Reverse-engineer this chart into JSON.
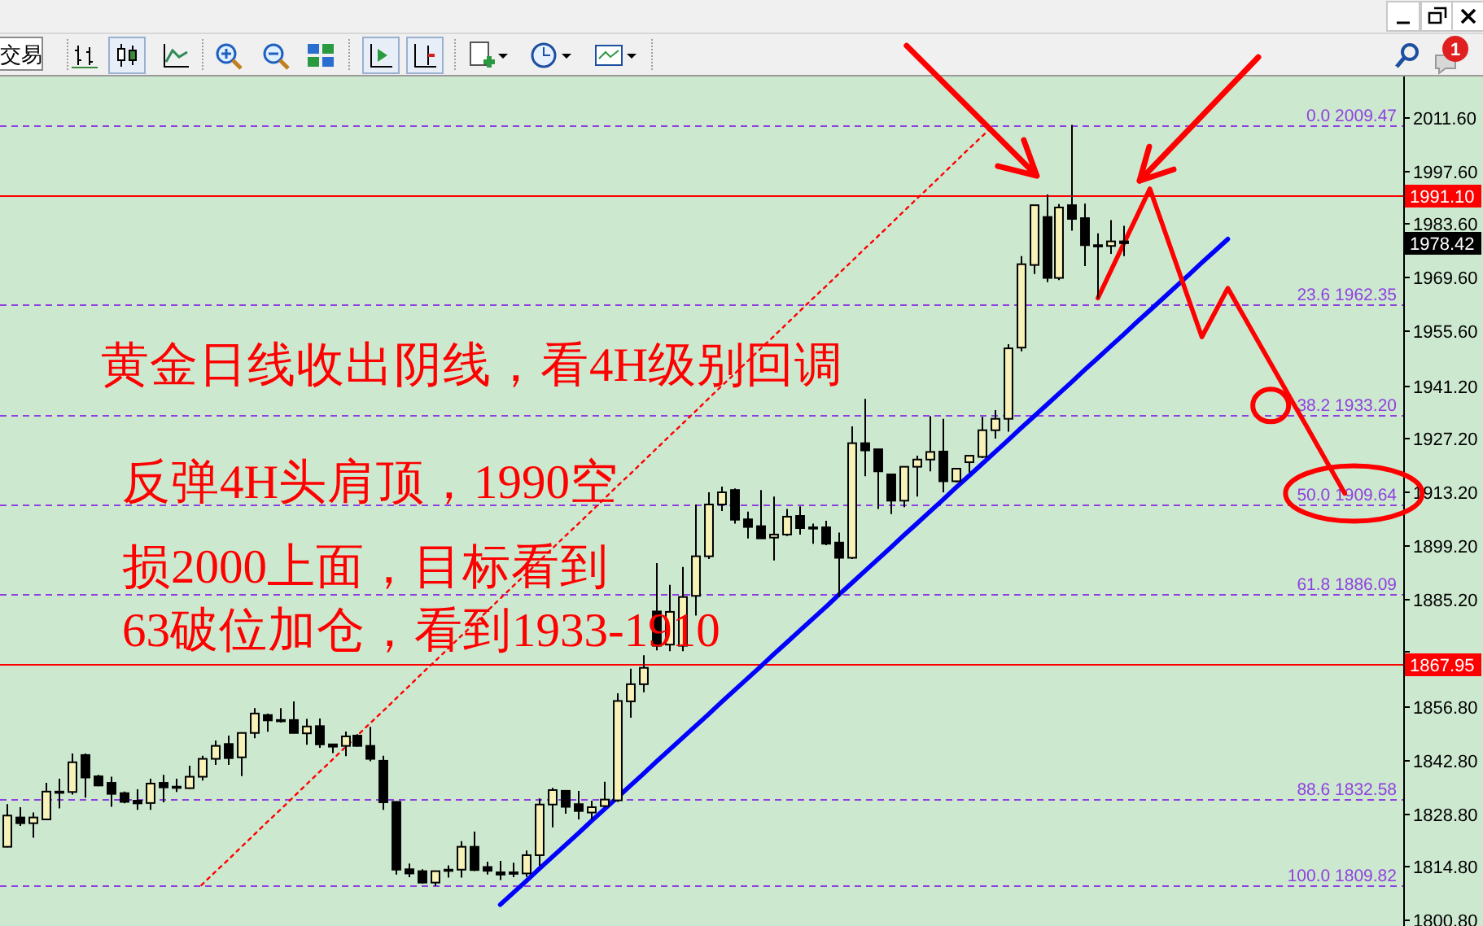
{
  "chart_data": {
    "type": "candlestick",
    "categories": [
      null,
      null,
      null,
      null,
      null,
      null,
      null,
      null,
      null,
      null,
      null,
      null,
      null,
      null,
      null,
      null,
      null,
      null,
      null,
      null,
      null,
      null,
      null,
      null,
      null,
      null,
      null,
      null,
      null,
      null,
      null,
      null,
      null,
      null,
      null,
      null,
      null,
      null,
      null,
      null,
      null,
      null,
      null,
      null,
      null,
      null,
      null,
      null,
      null,
      null,
      null,
      null,
      null,
      null,
      null,
      null,
      null,
      null,
      null,
      null,
      null,
      null,
      null,
      null,
      null,
      null,
      null,
      null,
      null,
      null,
      null,
      null,
      null,
      null,
      null,
      null,
      null,
      null,
      null,
      null,
      null,
      null,
      null,
      null,
      null,
      null,
      null,
      null,
      null,
      null,
      null,
      null,
      null,
      null,
      null,
      null,
      null,
      null,
      null,
      null,
      null,
      null,
      null,
      null,
      null,
      null,
      null,
      null
    ],
    "ohlc": [
      [
        1819.9,
        1831.1,
        1819.8,
        1828.1
      ],
      [
        1827.6,
        1830.3,
        1825.4,
        1826.1
      ],
      [
        1826.1,
        1828.9,
        1822.3,
        1827.6
      ],
      [
        1827.1,
        1836.7,
        1827.0,
        1834.4
      ],
      [
        1834.4,
        1837.8,
        1830.0,
        1834.4
      ],
      [
        1834.3,
        1844.4,
        1833.6,
        1842.1
      ],
      [
        1844.0,
        1844.4,
        1832.8,
        1838.1
      ],
      [
        1838.4,
        1838.8,
        1835.8,
        1836.0
      ],
      [
        1836.7,
        1838.3,
        1830.4,
        1833.8
      ],
      [
        1834.0,
        1834.4,
        1831.3,
        1831.7
      ],
      [
        1832.0,
        1835.0,
        1829.6,
        1831.3
      ],
      [
        1831.4,
        1837.8,
        1829.6,
        1836.5
      ],
      [
        1836.7,
        1838.8,
        1831.6,
        1835.5
      ],
      [
        1835.7,
        1837.8,
        1834.3,
        1835.7
      ],
      [
        1835.3,
        1841.2,
        1835.1,
        1838.3
      ],
      [
        1838.3,
        1843.8,
        1837.3,
        1843.0
      ],
      [
        1843.0,
        1847.8,
        1841.4,
        1846.4
      ],
      [
        1846.9,
        1849.1,
        1841.4,
        1843.2
      ],
      [
        1843.4,
        1849.9,
        1838.5,
        1849.8
      ],
      [
        1849.8,
        1856.3,
        1848.4,
        1854.9
      ],
      [
        1854.5,
        1854.9,
        1850.1,
        1853.1
      ],
      [
        1853.2,
        1856.3,
        1852.5,
        1853.2
      ],
      [
        1853.2,
        1858.1,
        1849.7,
        1849.8
      ],
      [
        1849.7,
        1853.5,
        1846.7,
        1851.5
      ],
      [
        1851.6,
        1853.6,
        1845.9,
        1846.8
      ],
      [
        1846.8,
        1846.8,
        1844.5,
        1846.2
      ],
      [
        1846.4,
        1850.2,
        1843.7,
        1848.9
      ],
      [
        1849.1,
        1849.5,
        1846.2,
        1846.4
      ],
      [
        1846.4,
        1851.4,
        1842.4,
        1843.0
      ],
      [
        1842.5,
        1843.8,
        1829.6,
        1831.6
      ],
      [
        1831.7,
        1831.7,
        1812.6,
        1813.9
      ],
      [
        1814.0,
        1815.5,
        1811.9,
        1812.9
      ],
      [
        1813.5,
        1814.0,
        1810.2,
        1810.5
      ],
      [
        1810.5,
        1813.5,
        1809.6,
        1813.5
      ],
      [
        1813.9,
        1815.0,
        1811.8,
        1813.9
      ],
      [
        1813.9,
        1821.4,
        1811.8,
        1819.9
      ],
      [
        1819.9,
        1823.9,
        1813.5,
        1813.8
      ],
      [
        1814.6,
        1816.0,
        1812.6,
        1813.6
      ],
      [
        1813.2,
        1816.2,
        1811.2,
        1812.6
      ],
      [
        1813.2,
        1815.7,
        1811.9,
        1812.8
      ],
      [
        1812.9,
        1818.9,
        1812.0,
        1817.7
      ],
      [
        1817.7,
        1832.6,
        1814.9,
        1831.0
      ],
      [
        1831.0,
        1835.4,
        1825.0,
        1834.8
      ],
      [
        1834.6,
        1834.8,
        1828.6,
        1830.4
      ],
      [
        1831.1,
        1834.6,
        1827.1,
        1829.3
      ],
      [
        1828.9,
        1832.0,
        1827.1,
        1830.3
      ],
      [
        1830.6,
        1837.0,
        1830.3,
        1832.3
      ],
      [
        1832.1,
        1860.2,
        1831.7,
        1858.2
      ],
      [
        1858.1,
        1866.7,
        1853.8,
        1862.6
      ],
      [
        1862.6,
        1870.2,
        1860.5,
        1866.9
      ],
      [
        1881.7,
        1894.4,
        1871.5,
        1872.7
      ],
      [
        1873.0,
        1888.7,
        1871.3,
        1881.6
      ],
      [
        1872.7,
        1893.4,
        1871.3,
        1885.5
      ],
      [
        1885.8,
        1909.8,
        1880.6,
        1896.2
      ],
      [
        1896.2,
        1913.0,
        1895.5,
        1909.8
      ],
      [
        1909.8,
        1914.5,
        1908.1,
        1913.0
      ],
      [
        1913.6,
        1914.0,
        1904.8,
        1905.8
      ],
      [
        1905.9,
        1907.9,
        1900.9,
        1903.9
      ],
      [
        1904.1,
        1913.6,
        1900.8,
        1900.9
      ],
      [
        1901.1,
        1911.9,
        1895.1,
        1901.9
      ],
      [
        1901.9,
        1908.6,
        1901.5,
        1906.6
      ],
      [
        1906.8,
        1909.3,
        1901.9,
        1903.6
      ],
      [
        1903.8,
        1904.8,
        1899.5,
        1903.8
      ],
      [
        1903.8,
        1905.5,
        1899.1,
        1899.5
      ],
      [
        1899.8,
        1902.4,
        1885.6,
        1895.8
      ],
      [
        1895.8,
        1930.3,
        1895.5,
        1925.9
      ],
      [
        1925.9,
        1937.5,
        1917.2,
        1924.0
      ],
      [
        1924.3,
        1924.3,
        1908.6,
        1918.5
      ],
      [
        1917.7,
        1917.7,
        1907.3,
        1910.8
      ],
      [
        1910.8,
        1919.7,
        1909.1,
        1919.7
      ],
      [
        1919.7,
        1922.6,
        1911.9,
        1921.6
      ],
      [
        1921.6,
        1933.0,
        1918.5,
        1923.6
      ],
      [
        1923.7,
        1932.3,
        1913.0,
        1915.9
      ],
      [
        1915.9,
        1919.3,
        1915.6,
        1919.2
      ],
      [
        1920.9,
        1922.6,
        1918.2,
        1922.6
      ],
      [
        1922.3,
        1932.8,
        1922.0,
        1929.3
      ],
      [
        1929.3,
        1934.6,
        1927.1,
        1932.3
      ],
      [
        1932.3,
        1951.9,
        1928.9,
        1950.8
      ],
      [
        1951.0,
        1975.0,
        1950.0,
        1972.9
      ],
      [
        1972.7,
        1988.4,
        1970.3,
        1988.4
      ],
      [
        1985.3,
        1991.2,
        1968.2,
        1969.3
      ],
      [
        1969.3,
        1988.7,
        1968.7,
        1987.8
      ],
      [
        1988.4,
        2009.5,
        1981.7,
        1984.8
      ],
      [
        1985.0,
        1988.8,
        1972.4,
        1977.9
      ],
      [
        1977.9,
        1981.0,
        1963.9,
        1977.9
      ],
      [
        1977.7,
        1984.5,
        1975.6,
        1978.9
      ],
      [
        1978.9,
        1983.0,
        1975.0,
        1978.42
      ],
      null,
      null,
      null,
      null,
      null,
      null,
      null,
      null,
      null,
      null,
      null,
      null,
      null,
      null,
      null,
      null,
      null,
      null,
      null,
      null,
      null
    ],
    "series": [
      {
        "type": "line",
        "color": "#0000ff",
        "values": [
          null,
          null,
          null,
          null,
          null,
          null,
          null,
          null,
          null,
          null,
          null,
          null,
          null,
          null,
          null,
          null,
          null,
          null,
          null,
          null,
          null,
          null,
          null,
          null,
          null,
          null,
          null,
          null,
          null,
          null,
          null,
          null,
          null,
          null,
          null,
          null,
          null,
          null,
          1804.7,
          1807.8,
          1810.9,
          1814.1,
          1817.2,
          1820.3,
          1823.4,
          1826.6,
          1829.7,
          1832.8,
          1835.9,
          1839.0,
          1842.2,
          1845.3,
          1848.4,
          1851.5,
          1854.6,
          1857.8,
          1860.9,
          1864.0,
          1867.1,
          1870.3,
          1873.4,
          1876.5,
          1879.6,
          1882.7,
          1885.9,
          1889.0,
          1892.1,
          1895.2,
          1898.3,
          1901.5,
          1904.6,
          1907.7,
          1910.8,
          1914.0,
          1917.1,
          1920.2,
          1923.3,
          1926.4,
          1929.6,
          1932.7,
          1935.8,
          1938.9,
          1942.0,
          1945.2,
          1948.3,
          1951.4,
          1954.5,
          1957.7,
          1960.8,
          1963.9,
          1967.0,
          1970.1,
          1973.3,
          1976.4,
          1979.5,
          null,
          null,
          null,
          null,
          null,
          null,
          null,
          null,
          null,
          null,
          null,
          null,
          null
        ]
      },
      {
        "type": "line",
        "color": "#ff0000",
        "line_style": "dotted",
        "values": [
          null,
          null,
          null,
          null,
          null,
          null,
          null,
          null,
          null,
          null,
          null,
          null,
          null,
          null,
          null,
          1809.8,
          1813.1,
          1816.3,
          1819.6,
          1822.9,
          1826.2,
          1829.4,
          1832.7,
          1836.0,
          1839.3,
          1842.5,
          1845.8,
          1849.1,
          1852.4,
          1855.6,
          1858.9,
          1862.2,
          1865.5,
          1868.7,
          1872.0,
          1875.3,
          1878.5,
          1881.8,
          1885.1,
          1888.4,
          1891.6,
          1894.9,
          1898.2,
          1901.5,
          1904.7,
          1908.0,
          1911.3,
          1914.6,
          1917.8,
          1921.1,
          1924.4,
          1927.7,
          1930.9,
          1934.2,
          1937.5,
          1940.8,
          1944.0,
          1947.3,
          1950.6,
          1953.8,
          1957.1,
          1960.4,
          1963.7,
          1966.9,
          1970.2,
          1973.5,
          1976.8,
          1980.0,
          1983.3,
          1986.6,
          1989.9,
          1993.1,
          1996.4,
          1999.7,
          2003.0,
          2006.2,
          2009.5,
          null,
          null,
          null,
          null,
          null,
          null,
          null,
          null,
          null,
          null,
          null,
          null,
          null,
          null,
          null,
          null,
          null,
          null,
          null,
          null,
          null,
          null,
          null,
          null,
          null,
          null,
          null,
          null,
          null,
          null,
          null
        ]
      },
      {
        "type": "line",
        "color": "#ff0000",
        "values": [
          null,
          null,
          null,
          null,
          null,
          null,
          null,
          null,
          null,
          null,
          null,
          null,
          null,
          null,
          null,
          null,
          null,
          null,
          null,
          null,
          null,
          null,
          null,
          null,
          null,
          null,
          null,
          null,
          null,
          null,
          null,
          null,
          null,
          null,
          null,
          null,
          null,
          null,
          null,
          null,
          null,
          null,
          null,
          null,
          null,
          null,
          null,
          null,
          null,
          null,
          null,
          null,
          null,
          null,
          null,
          null,
          null,
          null,
          null,
          null,
          null,
          null,
          null,
          null,
          null,
          null,
          null,
          null,
          null,
          null,
          null,
          null,
          null,
          null,
          null,
          null,
          null,
          null,
          null,
          null,
          null,
          null,
          null,
          null,
          1964.0,
          1971.2,
          1978.4,
          1985.5,
          1992.7,
          1983.0,
          1973.3,
          1963.5,
          1953.8,
          1960.2,
          1966.6,
          1960.6,
          1954.6,
          1948.6,
          1942.6,
          1936.6,
          1930.7,
          1924.7,
          1918.7,
          1912.7,
          null,
          null,
          null,
          null
        ]
      }
    ],
    "ylim": [
      1799.1,
      2022.2
    ],
    "yticks": [
      {
        "value": 2011.6,
        "label": "2011.60"
      },
      {
        "value": 1997.6,
        "label": "1997.60"
      },
      {
        "value": 1983.6,
        "label": "1983.60"
      },
      {
        "value": 1969.6,
        "label": "1969.60"
      },
      {
        "value": 1955.6,
        "label": "1955.60"
      },
      {
        "value": 1941.2,
        "label": "1941.20"
      },
      {
        "value": 1927.2,
        "label": "1927.20"
      },
      {
        "value": 1913.2,
        "label": "1913.20"
      },
      {
        "value": 1899.2,
        "label": "1899.20"
      },
      {
        "value": 1885.2,
        "label": "1885.20"
      },
      {
        "value": 1871.2,
        "label": null
      },
      {
        "value": 1856.8,
        "label": "1856.80"
      },
      {
        "value": 1842.8,
        "label": "1842.80"
      },
      {
        "value": 1828.8,
        "label": "1828.80"
      },
      {
        "value": 1814.8,
        "label": "1814.80"
      },
      {
        "value": 1800.8,
        "label": "1800.80"
      }
    ],
    "ref_lines": [
      {
        "axis": "y",
        "value": 2009.47,
        "label": "0.0 2009.47",
        "color": "#9040e0",
        "line_style": "dashed"
      },
      {
        "axis": "y",
        "value": 1962.35,
        "label": "23.6 1962.35",
        "color": "#9040e0",
        "line_style": "dashed"
      },
      {
        "axis": "y",
        "value": 1933.2,
        "label": "38.2 1933.20",
        "color": "#9040e0",
        "line_style": "dashed"
      },
      {
        "axis": "y",
        "value": 1909.64,
        "label": "50.0 1909.64",
        "color": "#9040e0",
        "line_style": "dashed"
      },
      {
        "axis": "y",
        "value": 1886.09,
        "label": "61.8 1886.09",
        "color": "#9040e0",
        "line_style": "dashed"
      },
      {
        "axis": "y",
        "value": 1832.58,
        "label": "88.6 1832.58",
        "color": "#9040e0",
        "line_style": "dashed"
      },
      {
        "axis": "y",
        "value": 1809.82,
        "label": "100.0 1809.82",
        "color": "#9040e0",
        "line_style": "dashed"
      },
      {
        "axis": "y",
        "value": 1991.1,
        "label": "1991.10",
        "color": "#ff0000",
        "line_style": "solid"
      },
      {
        "axis": "y",
        "value": 1867.95,
        "label": "1867.95",
        "color": "#ff0000",
        "line_style": "solid"
      }
    ],
    "annotations": [
      "黄金日线收出阴线，看4H级别回调",
      "反弹4H头肩顶，1990空",
      "损2000上面，目标看到",
      "63破位加仓，看到1933-1910",
      "1978.42",
      "交易",
      "1"
    ]
  }
}
